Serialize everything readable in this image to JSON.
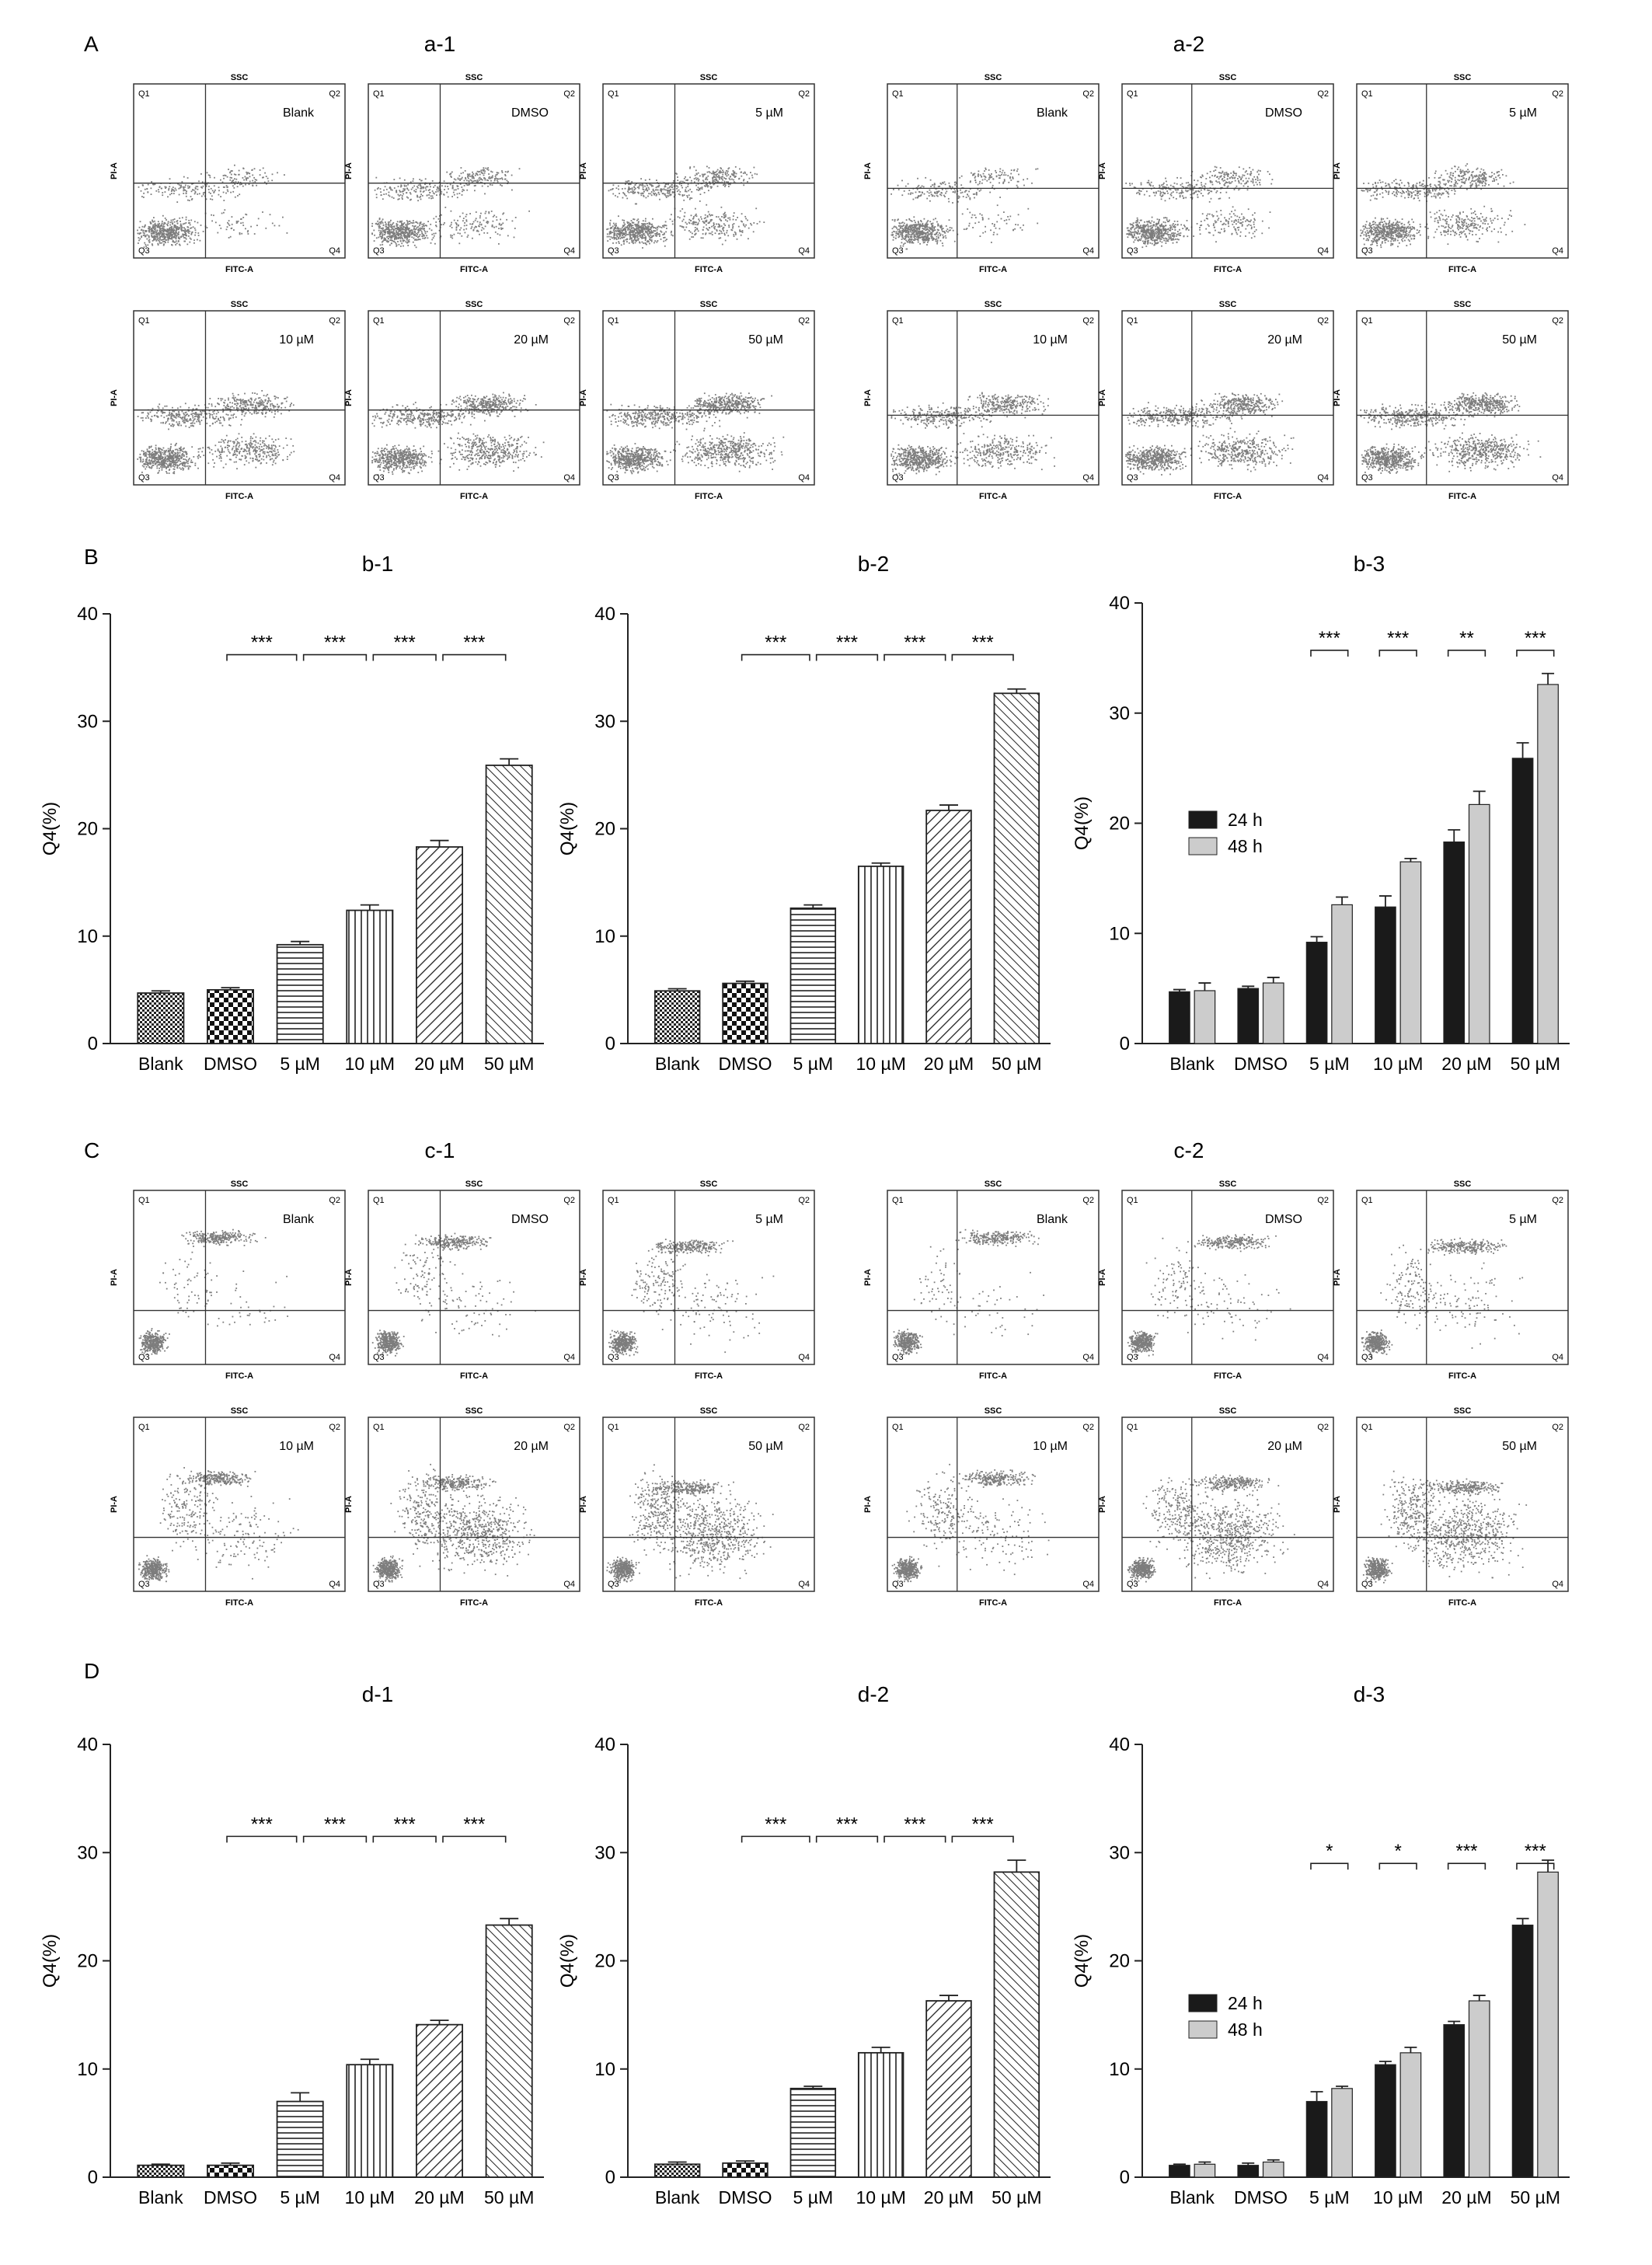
{
  "section_labels": [
    "A",
    "B",
    "C",
    "D"
  ],
  "colors": {
    "black_bar": "#1a1a1a",
    "grey_bar": "#cccccc",
    "dots": "#7a7a7a",
    "axis": "#222222"
  },
  "flow_plot_text": {
    "top": "SSC",
    "bottom": "FITC-A",
    "left": "PI-A",
    "q1": "Q1",
    "q2": "Q2",
    "q3": "Q3",
    "q4": "Q4"
  },
  "flow_groups": [
    {
      "label": "a-1",
      "conditions": [
        "Blank",
        "DMSO",
        "5 µM",
        "10 µM",
        "20 µM",
        "50 µM"
      ]
    },
    {
      "label": "a-2",
      "conditions": [
        "Blank",
        "DMSO",
        "5 µM",
        "10 µM",
        "20 µM",
        "50 µM"
      ]
    },
    {
      "label": "c-1",
      "conditions": [
        "Blank",
        "DMSO",
        "5 µM",
        "10 µM",
        "20 µM",
        "50 µM"
      ]
    },
    {
      "label": "c-2",
      "conditions": [
        "Blank",
        "DMSO",
        "5 µM",
        "10 µM",
        "20 µM",
        "50 µM"
      ]
    }
  ],
  "chart_data": [
    {
      "panel": "b-1",
      "type": "bar",
      "title": "b-1",
      "ylabel": "Q4(%)",
      "ylim": [
        0,
        40
      ],
      "yticks": [
        0,
        10,
        20,
        30,
        40
      ],
      "categories": [
        "Blank",
        "DMSO",
        "5 µM",
        "10 µM",
        "20 µM",
        "50 µM"
      ],
      "values": [
        4.7,
        5.0,
        9.2,
        12.4,
        18.3,
        25.9
      ],
      "errors": [
        0.2,
        0.2,
        0.3,
        0.5,
        0.6,
        0.6
      ],
      "significance": [
        "***",
        "***",
        "***",
        "***"
      ]
    },
    {
      "panel": "b-2",
      "type": "bar",
      "title": "b-2",
      "ylabel": "Q4(%)",
      "ylim": [
        0,
        40
      ],
      "yticks": [
        0,
        10,
        20,
        30,
        40
      ],
      "categories": [
        "Blank",
        "DMSO",
        "5 µM",
        "10 µM",
        "20 µM",
        "50 µM"
      ],
      "values": [
        4.9,
        5.6,
        12.6,
        16.5,
        21.7,
        32.6
      ],
      "errors": [
        0.2,
        0.2,
        0.3,
        0.3,
        0.5,
        0.4
      ],
      "significance": [
        "***",
        "***",
        "***",
        "***"
      ]
    },
    {
      "panel": "b-3",
      "type": "bar",
      "title": "b-3",
      "ylabel": "Q4(%)",
      "ylim": [
        0,
        40
      ],
      "yticks": [
        0,
        10,
        20,
        30,
        40
      ],
      "categories": [
        "Blank",
        "DMSO",
        "5 µM",
        "10 µM",
        "20 µM",
        "50 µM"
      ],
      "series": [
        {
          "name": "24 h",
          "values": [
            4.7,
            5.0,
            9.2,
            12.4,
            18.3,
            25.9
          ],
          "errors": [
            0.2,
            0.2,
            0.5,
            1.0,
            1.1,
            1.4
          ]
        },
        {
          "name": "48 h",
          "values": [
            4.8,
            5.5,
            12.6,
            16.5,
            21.7,
            32.6
          ],
          "errors": [
            0.7,
            0.5,
            0.7,
            0.3,
            1.2,
            1.0
          ]
        }
      ],
      "significance": [
        "***",
        "***",
        "**",
        "***"
      ],
      "legend": "center-left"
    },
    {
      "panel": "d-1",
      "type": "bar",
      "title": "d-1",
      "ylabel": "Q4(%)",
      "ylim": [
        0,
        40
      ],
      "yticks": [
        0,
        10,
        20,
        30,
        40
      ],
      "categories": [
        "Blank",
        "DMSO",
        "5 µM",
        "10 µM",
        "20 µM",
        "50 µM"
      ],
      "values": [
        1.1,
        1.1,
        7.0,
        10.4,
        14.1,
        23.3
      ],
      "errors": [
        0.1,
        0.2,
        0.8,
        0.5,
        0.4,
        0.6
      ],
      "significance": [
        "***",
        "***",
        "***",
        "***"
      ]
    },
    {
      "panel": "d-2",
      "type": "bar",
      "title": "d-2",
      "ylabel": "Q4(%)",
      "ylim": [
        0,
        40
      ],
      "yticks": [
        0,
        10,
        20,
        30,
        40
      ],
      "categories": [
        "Blank",
        "DMSO",
        "5 µM",
        "10 µM",
        "20 µM",
        "50 µM"
      ],
      "values": [
        1.2,
        1.3,
        8.2,
        11.5,
        16.3,
        28.2
      ],
      "errors": [
        0.2,
        0.2,
        0.2,
        0.5,
        0.5,
        1.1
      ],
      "significance": [
        "***",
        "***",
        "***",
        "***"
      ]
    },
    {
      "panel": "d-3",
      "type": "bar",
      "title": "d-3",
      "ylabel": "Q4(%)",
      "ylim": [
        0,
        40
      ],
      "yticks": [
        0,
        10,
        20,
        30,
        40
      ],
      "categories": [
        "Blank",
        "DMSO",
        "5 µM",
        "10 µM",
        "20 µM",
        "50 µM"
      ],
      "series": [
        {
          "name": "24 h",
          "values": [
            1.1,
            1.1,
            7.0,
            10.4,
            14.1,
            23.3
          ],
          "errors": [
            0.1,
            0.2,
            0.9,
            0.3,
            0.3,
            0.6
          ]
        },
        {
          "name": "48 h",
          "values": [
            1.2,
            1.4,
            8.2,
            11.5,
            16.3,
            28.2
          ],
          "errors": [
            0.2,
            0.2,
            0.2,
            0.5,
            0.5,
            1.1
          ]
        }
      ],
      "significance": [
        "*",
        "*",
        "***",
        "***"
      ],
      "legend": "center-left"
    }
  ]
}
